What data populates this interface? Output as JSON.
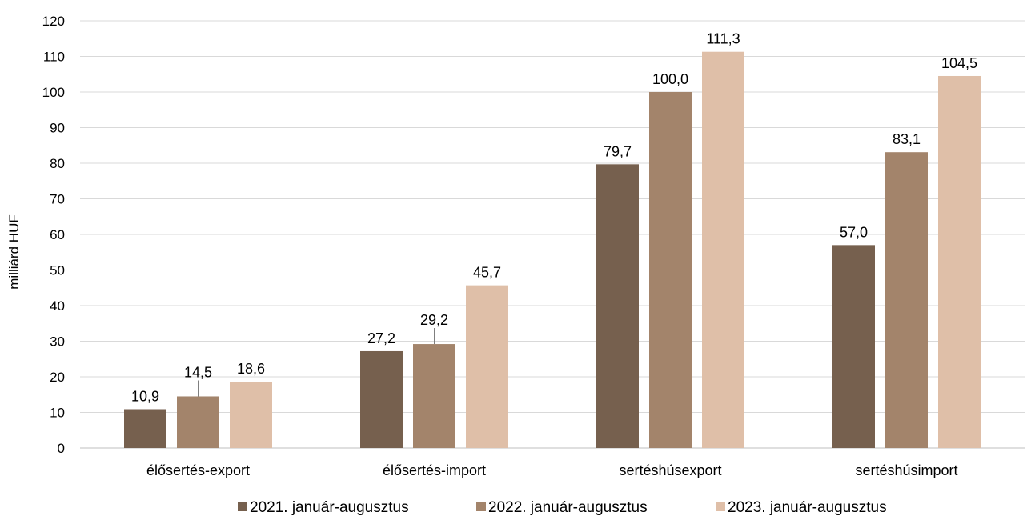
{
  "chart_data": {
    "type": "bar",
    "title": "",
    "xlabel": "",
    "ylabel": "milliárd HUF",
    "ylim": [
      0,
      120
    ],
    "yticks": [
      0,
      10,
      20,
      30,
      40,
      50,
      60,
      70,
      80,
      90,
      100,
      110,
      120
    ],
    "grid": true,
    "legend": "bottom",
    "categories": [
      "élősertés-export",
      "élősertés-import",
      "sertéshúsexport",
      "sertéshúsimport"
    ],
    "series": [
      {
        "name": "2021. január-augusztus",
        "color": "#76604e",
        "values": [
          10.9,
          27.2,
          79.7,
          57.0
        ],
        "labels": [
          "10,9",
          "27,2",
          "79,7",
          "57,0"
        ]
      },
      {
        "name": "2022. január-augusztus",
        "color": "#a3846b",
        "values": [
          14.5,
          29.2,
          100.0,
          83.1
        ],
        "labels": [
          "14,5",
          "29,2",
          "100,0",
          "83,1"
        ]
      },
      {
        "name": "2023. január-augusztus",
        "color": "#dfbfa8",
        "values": [
          18.6,
          45.7,
          111.3,
          104.5
        ],
        "labels": [
          "18,6",
          "45,7",
          "111,3",
          "104,5"
        ]
      }
    ]
  }
}
